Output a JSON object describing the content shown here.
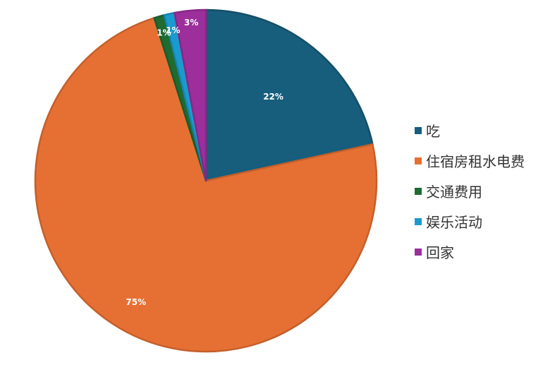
{
  "chart_data": {
    "type": "pie",
    "title": "",
    "categories": [
      "吃",
      "住宿房租水电费",
      "交通费用",
      "娱乐活动",
      "回家"
    ],
    "values": [
      22,
      75,
      1,
      1,
      3
    ],
    "labels": [
      "22%",
      "75%",
      "1%",
      "1%",
      "3%"
    ],
    "colors": [
      "#175d7c",
      "#e67033",
      "#1f6b32",
      "#1a9bd0",
      "#9c2f9c"
    ],
    "legend": "right"
  }
}
